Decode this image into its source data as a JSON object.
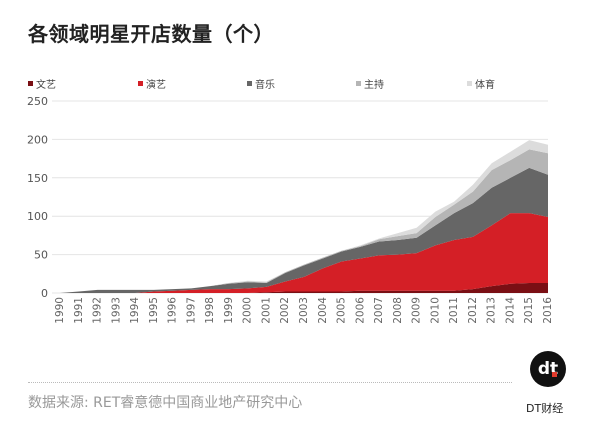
{
  "title": "各领域明星开店数量（个）",
  "source": "数据来源: RET睿意德中国商业地产研究中心",
  "brand": {
    "logo_text": "dt",
    "name": "DT财经"
  },
  "chart_data": {
    "type": "area",
    "stacked": true,
    "title": "各领域明星开店数量（个）",
    "xlabel": "",
    "ylabel": "",
    "ylim": [
      0,
      250
    ],
    "yticks": [
      0,
      50,
      100,
      150,
      200,
      250
    ],
    "grid": true,
    "legend_position": "top",
    "x": [
      1990,
      1991,
      1992,
      1993,
      1994,
      1995,
      1996,
      1997,
      1998,
      1999,
      2000,
      2001,
      2002,
      2003,
      2004,
      2005,
      2006,
      2007,
      2008,
      2009,
      2010,
      2011,
      2012,
      2013,
      2014,
      2015,
      2016
    ],
    "series": [
      {
        "name": "文艺",
        "color": "#7a0f14",
        "values": [
          0,
          0,
          0,
          0,
          0,
          0,
          0,
          0,
          0,
          0,
          0,
          1,
          2,
          2,
          2,
          2,
          3,
          3,
          3,
          3,
          3,
          3,
          5,
          9,
          12,
          13,
          13
        ]
      },
      {
        "name": "演艺",
        "color": "#d41f26",
        "values": [
          0,
          0,
          0,
          0,
          0,
          2,
          3,
          4,
          5,
          5,
          6,
          7,
          13,
          19,
          30,
          39,
          42,
          46,
          47,
          49,
          59,
          66,
          68,
          79,
          92,
          91,
          86
        ]
      },
      {
        "name": "音乐",
        "color": "#666666",
        "values": [
          0,
          2,
          4,
          4,
          4,
          2,
          2,
          2,
          4,
          7,
          8,
          5,
          11,
          15,
          13,
          13,
          15,
          18,
          19,
          20,
          26,
          35,
          44,
          49,
          46,
          59,
          55
        ]
      },
      {
        "name": "主持",
        "color": "#b5b5b5",
        "values": [
          0,
          0,
          0,
          0,
          0,
          0,
          0,
          0,
          0,
          1,
          1,
          1,
          1,
          1,
          1,
          1,
          1,
          3,
          5,
          6,
          11,
          11,
          15,
          23,
          23,
          24,
          28
        ]
      },
      {
        "name": "体育",
        "color": "#dcdcdc",
        "values": [
          0,
          0,
          0,
          0,
          0,
          0,
          0,
          0,
          0,
          0,
          1,
          1,
          0,
          0,
          0,
          0,
          1,
          1,
          4,
          7,
          7,
          4,
          9,
          9,
          11,
          12,
          11
        ]
      }
    ]
  }
}
